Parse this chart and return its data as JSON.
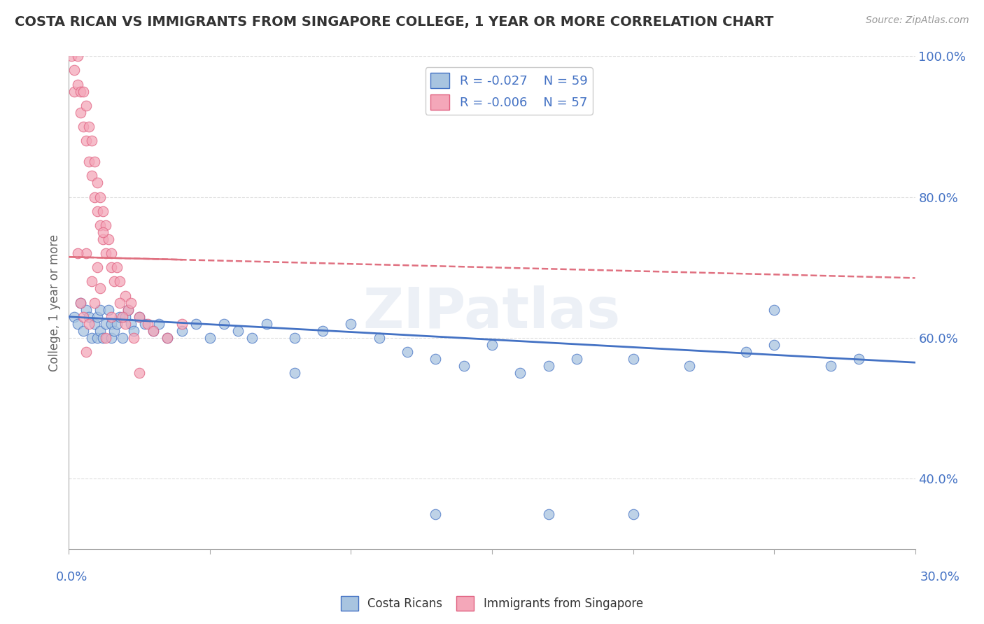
{
  "title": "COSTA RICAN VS IMMIGRANTS FROM SINGAPORE COLLEGE, 1 YEAR OR MORE CORRELATION CHART",
  "source": "Source: ZipAtlas.com",
  "ylabel": "College, 1 year or more",
  "legend_r1": "-0.027",
  "legend_n1": "59",
  "legend_r2": "-0.006",
  "legend_n2": "57",
  "color_blue": "#a8c4e0",
  "color_pink": "#f4a7b9",
  "color_blue_text": "#4472c4",
  "color_pink_text": "#e06080",
  "trendline_blue": "#4472c4",
  "trendline_pink": "#e07080",
  "legend_label1": "Costa Ricans",
  "legend_label2": "Immigrants from Singapore",
  "xmin": 0.0,
  "xmax": 30.0,
  "ymin": 30.0,
  "ymax": 100.0,
  "blue_x": [
    0.2,
    0.3,
    0.4,
    0.5,
    0.6,
    0.7,
    0.8,
    0.9,
    1.0,
    1.0,
    1.1,
    1.1,
    1.2,
    1.3,
    1.4,
    1.5,
    1.5,
    1.6,
    1.7,
    1.8,
    1.9,
    2.0,
    2.1,
    2.2,
    2.3,
    2.5,
    2.7,
    3.0,
    3.2,
    3.5,
    4.0,
    4.5,
    5.0,
    5.5,
    6.0,
    6.5,
    7.0,
    8.0,
    9.0,
    10.0,
    11.0,
    12.0,
    13.0,
    14.0,
    15.0,
    16.0,
    17.0,
    18.0,
    20.0,
    22.0,
    24.0,
    25.0,
    27.0,
    28.0,
    8.0,
    20.0,
    25.0,
    17.0,
    13.0
  ],
  "blue_y": [
    63.0,
    62.0,
    65.0,
    61.0,
    64.0,
    63.0,
    60.0,
    62.0,
    63.0,
    60.0,
    64.0,
    61.0,
    60.0,
    62.0,
    64.0,
    62.0,
    60.0,
    61.0,
    62.0,
    63.0,
    60.0,
    63.0,
    64.0,
    62.0,
    61.0,
    63.0,
    62.0,
    61.0,
    62.0,
    60.0,
    61.0,
    62.0,
    60.0,
    62.0,
    61.0,
    60.0,
    62.0,
    60.0,
    61.0,
    62.0,
    60.0,
    58.0,
    57.0,
    56.0,
    59.0,
    55.0,
    56.0,
    57.0,
    57.0,
    56.0,
    58.0,
    59.0,
    56.0,
    57.0,
    55.0,
    35.0,
    64.0,
    35.0,
    35.0
  ],
  "pink_x": [
    0.1,
    0.2,
    0.2,
    0.3,
    0.3,
    0.4,
    0.4,
    0.5,
    0.5,
    0.6,
    0.6,
    0.7,
    0.7,
    0.8,
    0.8,
    0.9,
    0.9,
    1.0,
    1.0,
    1.1,
    1.1,
    1.2,
    1.2,
    1.3,
    1.3,
    1.4,
    1.5,
    1.5,
    1.6,
    1.7,
    1.8,
    2.0,
    2.1,
    2.2,
    2.5,
    2.8,
    3.0,
    3.5,
    4.0,
    1.2,
    0.5,
    0.8,
    1.0,
    0.6,
    0.9,
    1.3,
    1.5,
    2.0,
    0.3,
    2.5,
    1.8,
    0.7,
    0.4,
    0.6,
    2.3,
    1.1,
    1.9
  ],
  "pink_y": [
    100.0,
    98.0,
    95.0,
    100.0,
    96.0,
    95.0,
    92.0,
    95.0,
    90.0,
    93.0,
    88.0,
    90.0,
    85.0,
    88.0,
    83.0,
    85.0,
    80.0,
    82.0,
    78.0,
    80.0,
    76.0,
    78.0,
    74.0,
    76.0,
    72.0,
    74.0,
    70.0,
    72.0,
    68.0,
    70.0,
    68.0,
    66.0,
    64.0,
    65.0,
    63.0,
    62.0,
    61.0,
    60.0,
    62.0,
    75.0,
    63.0,
    68.0,
    70.0,
    72.0,
    65.0,
    60.0,
    63.0,
    62.0,
    72.0,
    55.0,
    65.0,
    62.0,
    65.0,
    58.0,
    60.0,
    67.0,
    63.0
  ],
  "watermark": "ZIPatlas",
  "background_color": "#ffffff",
  "grid_color": "#dddddd"
}
